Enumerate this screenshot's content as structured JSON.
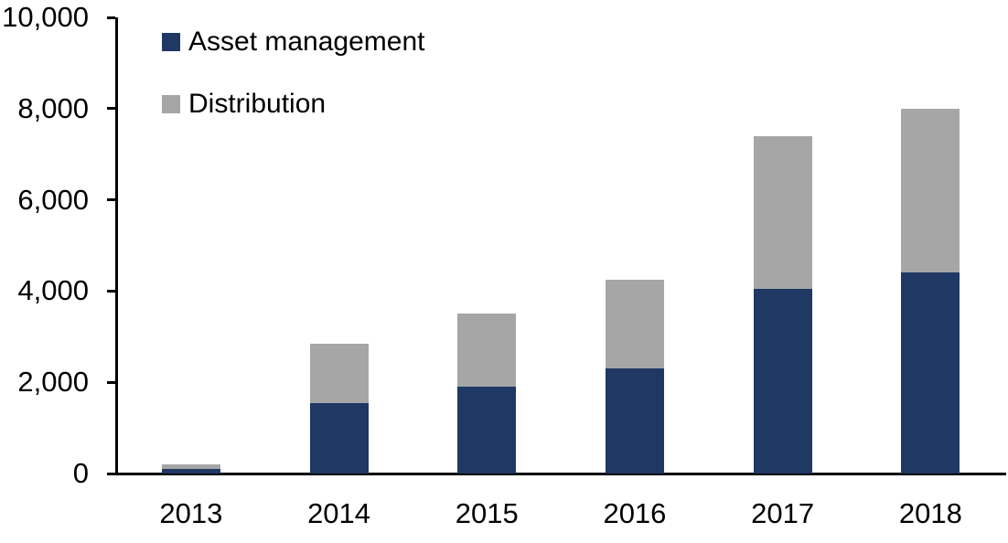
{
  "chart_data": {
    "type": "bar",
    "stacked": true,
    "title": "",
    "xlabel": "",
    "ylabel": "",
    "categories": [
      "2013",
      "2014",
      "2015",
      "2016",
      "2017",
      "2018"
    ],
    "series": [
      {
        "name": "Asset management",
        "color": "#1f3864",
        "values": [
          100,
          1550,
          1900,
          2300,
          4050,
          4400
        ]
      },
      {
        "name": "Distribution",
        "color": "#a6a6a6",
        "values": [
          100,
          1300,
          1600,
          1950,
          3350,
          3600
        ]
      }
    ],
    "totals": [
      200,
      2850,
      3500,
      4250,
      7400,
      8000
    ],
    "ylim": [
      0,
      10000
    ],
    "y_ticks": [
      0,
      2000,
      4000,
      6000,
      8000,
      10000
    ],
    "y_tick_labels": [
      "0",
      "2,000",
      "4,000",
      "6,000",
      "8,000",
      "10,000"
    ],
    "grid": false,
    "legend_position": "top-left"
  },
  "colors": {
    "axis": "#000000",
    "text": "#000000",
    "background": "#ffffff",
    "asset_management": "#1f3864",
    "distribution": "#a6a6a6"
  }
}
